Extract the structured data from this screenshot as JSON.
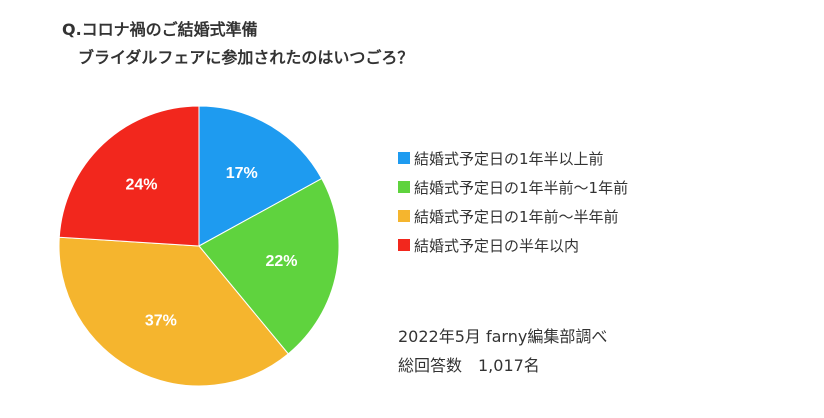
{
  "title": {
    "line1": "Q.コロナ禍のご結婚式準備",
    "line2": "ブライダルフェアに参加されたのはいつごろ？"
  },
  "chart_data": {
    "type": "pie",
    "categories": [
      "結婚式予定日の1年半以上前",
      "結婚式予定日の1年半前〜1年前",
      "結婚式予定日の1年前〜半年前",
      "結婚式予定日の半年以内"
    ],
    "values": [
      17,
      22,
      37,
      24
    ],
    "labels": [
      "17%",
      "22%",
      "37%",
      "24%"
    ],
    "colors": [
      "#1e9bf0",
      "#5fd33e",
      "#f5b52e",
      "#f2271d"
    ],
    "start_angle_deg": 0,
    "direction": "clockwise",
    "legend_position": "right"
  },
  "legend": [
    {
      "label": "結婚式予定日の1年半以上前",
      "color": "#1e9bf0"
    },
    {
      "label": "結婚式予定日の1年半前〜1年前",
      "color": "#5fd33e"
    },
    {
      "label": "結婚式予定日の1年前〜半年前",
      "color": "#f5b52e"
    },
    {
      "label": "結婚式予定日の半年以内",
      "color": "#f2271d"
    }
  ],
  "source": {
    "line1": "2022年5月 farny編集部調べ",
    "line2": "総回答数　1,017名"
  }
}
